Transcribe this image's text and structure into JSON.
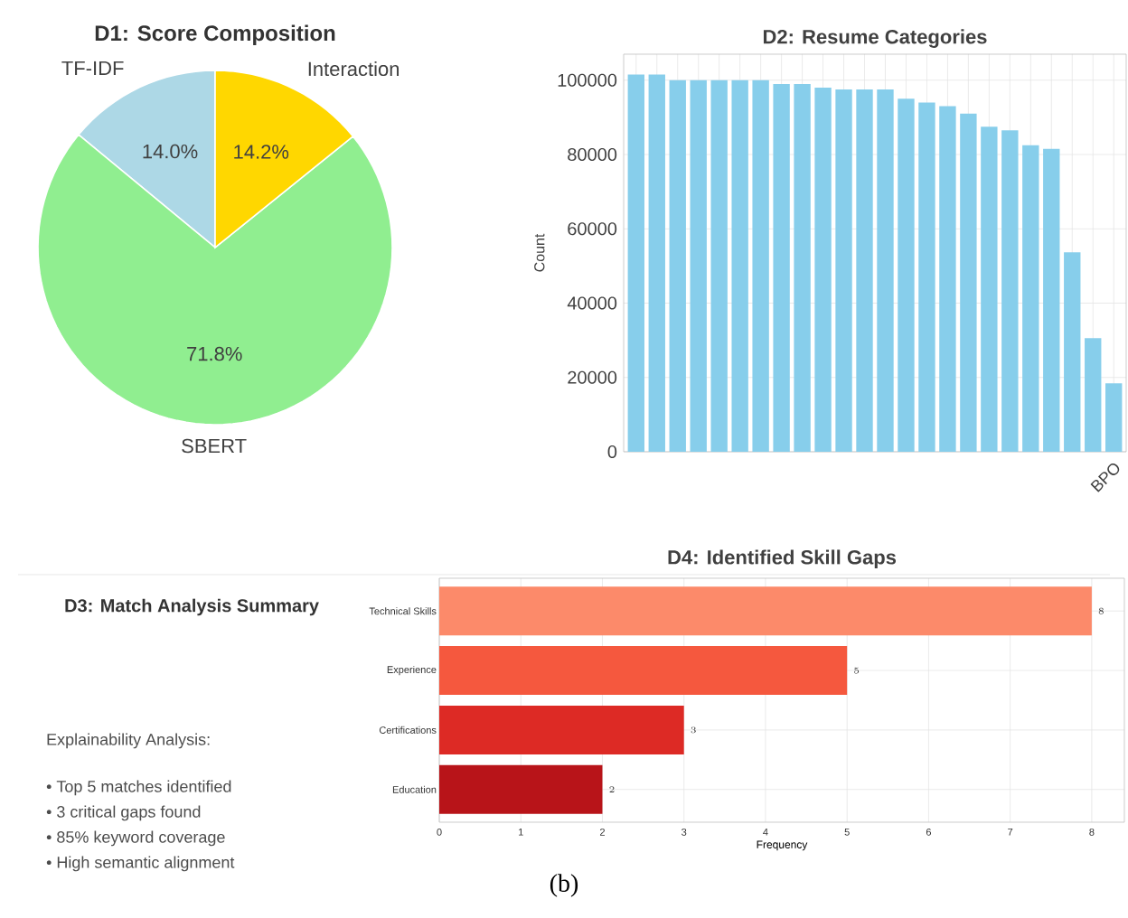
{
  "chart_data": [
    {
      "type": "pie",
      "title": "D1: Score Composition",
      "categories": [
        "TF-IDF",
        "SBERT",
        "Interaction"
      ],
      "values": [
        14.0,
        71.8,
        14.2
      ],
      "colors": [
        "#add8e6",
        "#90ee90",
        "#ffd700"
      ],
      "value_labels": [
        "14.0%",
        "71.8%",
        "14.2%"
      ]
    },
    {
      "type": "bar",
      "title": "D2: Resume Categories",
      "ylabel": "Count",
      "categories": [
        null,
        null,
        null,
        null,
        null,
        null,
        null,
        null,
        null,
        null,
        null,
        null,
        null,
        null,
        null,
        null,
        null,
        null,
        null,
        null,
        null,
        null,
        null,
        "BPO"
      ],
      "values": [
        101500,
        101500,
        100000,
        100000,
        100000,
        100000,
        100000,
        99000,
        99000,
        98000,
        97500,
        97500,
        97500,
        95000,
        94000,
        93000,
        91000,
        87500,
        86500,
        82500,
        81500,
        53700,
        30600,
        18400
      ],
      "color": "#87ceeb",
      "ylim": [
        0,
        107000
      ],
      "yticks": [
        0,
        20000,
        40000,
        60000,
        80000,
        100000
      ],
      "grid": true
    },
    {
      "type": "other",
      "title": "D3: Match Analysis Summary",
      "annotations": [
        "Explainability Analysis:",
        "• Top 5 matches identified",
        "• 3 critical gaps found",
        "• 85% keyword coverage",
        "• High semantic alignment"
      ]
    },
    {
      "type": "bar",
      "orientation": "horizontal",
      "title": "D4: Identified Skill Gaps",
      "xlabel": "Frequency",
      "categories": [
        "Technical Skills",
        "Experience",
        "Certifications",
        "Education"
      ],
      "values": [
        8,
        5,
        3,
        2
      ],
      "colors": [
        "#fc8a6a",
        "#f5583e",
        "#dd2a25",
        "#b81419"
      ],
      "xlim": [
        0,
        8.4
      ],
      "xticks": [
        0,
        1,
        2,
        3,
        4,
        5,
        6,
        7,
        8
      ],
      "grid": true,
      "data_labels": true,
      "annotations": [
        "(b)"
      ]
    }
  ]
}
